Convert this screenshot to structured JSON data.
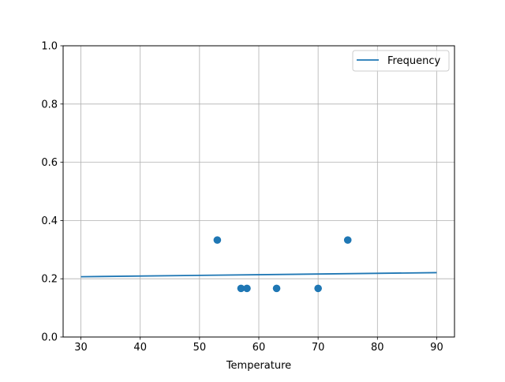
{
  "chart_data": {
    "type": "scatter",
    "title": "",
    "xlabel": "Temperature",
    "ylabel": "",
    "xlim": [
      27,
      93
    ],
    "ylim": [
      0,
      1
    ],
    "xticks": [
      30,
      40,
      50,
      60,
      70,
      80,
      90
    ],
    "xtick_labels": [
      "30",
      "40",
      "50",
      "60",
      "70",
      "80",
      "90"
    ],
    "yticks": [
      0,
      0.2,
      0.4,
      0.6,
      0.8,
      1.0
    ],
    "ytick_labels": [
      "0.0",
      "0.2",
      "0.4",
      "0.6",
      "0.8",
      "1.0"
    ],
    "grid": true,
    "legend_placement": "top-right",
    "color": "#1f77b4",
    "scatter_points": [
      {
        "x": 53,
        "y": 0.333
      },
      {
        "x": 57,
        "y": 0.167
      },
      {
        "x": 58,
        "y": 0.167
      },
      {
        "x": 63,
        "y": 0.167
      },
      {
        "x": 70,
        "y": 0.167
      },
      {
        "x": 75,
        "y": 0.333
      }
    ],
    "line_series": {
      "name": "Frequency",
      "x": [
        30,
        90
      ],
      "y": [
        0.207,
        0.221
      ]
    }
  }
}
